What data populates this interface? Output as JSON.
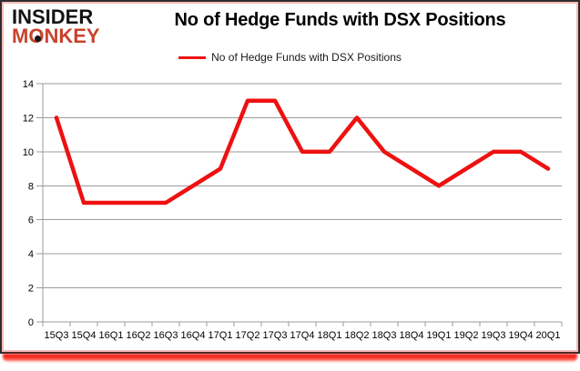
{
  "logo": {
    "line1": "INSIDER",
    "line2": "MONKEY"
  },
  "header": {
    "title": "No of Hedge Funds with DSX Positions"
  },
  "legend": {
    "label": "No of Hedge Funds with DSX Positions"
  },
  "colors": {
    "series": "#ee1111",
    "logo_red": "#c8432c",
    "gridline": "#9b9b9b",
    "axis": "#9b9b9b",
    "outer_border": "#2d2d2d",
    "inner_border": "#f6baba",
    "bottom_glow": "#e60c0c",
    "text": "#000000"
  },
  "chart_data": {
    "type": "line",
    "title": "No of Hedge Funds with DSX Positions",
    "xlabel": "",
    "ylabel": "",
    "categories": [
      "15Q3",
      "15Q4",
      "16Q1",
      "16Q2",
      "16Q3",
      "16Q4",
      "17Q1",
      "17Q2",
      "17Q3",
      "17Q4",
      "18Q1",
      "18Q2",
      "18Q3",
      "18Q4",
      "19Q1",
      "19Q2",
      "19Q3",
      "19Q4",
      "20Q1"
    ],
    "series": [
      {
        "name": "No of Hedge Funds with DSX Positions",
        "color": "#ee1111",
        "values": [
          12,
          7,
          7,
          7,
          7,
          8,
          9,
          13,
          13,
          10,
          10,
          12,
          10,
          9,
          8,
          9,
          10,
          10,
          9
        ]
      }
    ],
    "ylim": [
      0,
      14
    ],
    "yticks": [
      0,
      2,
      4,
      6,
      8,
      10,
      12,
      14
    ],
    "grid": true,
    "legend_position": "top"
  }
}
